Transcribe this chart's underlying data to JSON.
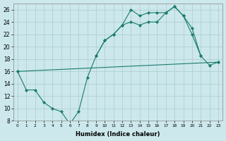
{
  "xlabel": "Humidex (Indice chaleur)",
  "bg_color": "#cce8ec",
  "grid_color": "#aacccc",
  "line_color": "#1a7a6e",
  "xlim": [
    -0.5,
    23.5
  ],
  "ylim": [
    8,
    27
  ],
  "xticks": [
    0,
    1,
    2,
    3,
    4,
    5,
    6,
    7,
    8,
    9,
    10,
    11,
    12,
    13,
    14,
    15,
    16,
    17,
    18,
    19,
    20,
    21,
    22,
    23
  ],
  "yticks": [
    8,
    10,
    12,
    14,
    16,
    18,
    20,
    22,
    24,
    26
  ],
  "lines": [
    {
      "x": [
        0,
        1,
        2,
        3,
        4,
        5,
        6,
        7,
        8,
        9,
        10,
        11,
        12,
        13,
        14,
        15,
        16,
        17,
        18,
        19,
        20,
        21
      ],
      "y": [
        16,
        13,
        13,
        11,
        10,
        9.5,
        7.5,
        9.5,
        15,
        18.5,
        21,
        22,
        23.5,
        26,
        25,
        25.5,
        25.5,
        25.5,
        26.5,
        25,
        22,
        18.5
      ]
    },
    {
      "x": [
        0,
        23
      ],
      "y": [
        16,
        17.5
      ]
    },
    {
      "comment": "upper smooth line: starts ~9,18.5 peaks ~18,26.5 ends 23,17.5",
      "x": [
        9,
        10,
        11,
        12,
        13,
        14,
        15,
        16,
        17,
        18,
        19,
        20,
        21,
        22,
        23
      ],
      "y": [
        18.5,
        21,
        22,
        23.5,
        24,
        23.5,
        24,
        24,
        25.5,
        26.5,
        25,
        23,
        18.5,
        17,
        17.5
      ]
    }
  ]
}
